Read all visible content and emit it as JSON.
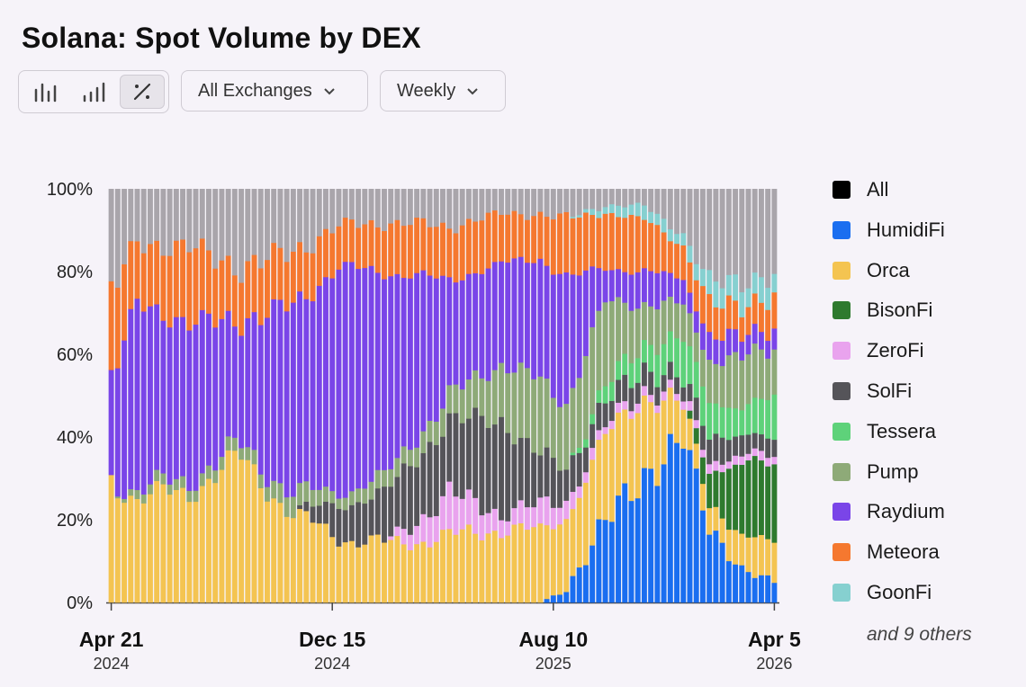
{
  "title": "Solana: Spot Volume by DEX",
  "toolbar": {
    "view_buttons": [
      {
        "name": "bar-chart-icon",
        "active": false
      },
      {
        "name": "ascending-bars-icon",
        "active": false
      },
      {
        "name": "percent-icon",
        "active": true
      }
    ],
    "exchange_select": "All Exchanges",
    "interval_select": "Weekly"
  },
  "legend": {
    "items": [
      {
        "label": "All",
        "color": "#000000"
      },
      {
        "label": "HumidiFi",
        "color": "#1a6ef0"
      },
      {
        "label": "Orca",
        "color": "#f4c451"
      },
      {
        "label": "BisonFi",
        "color": "#2e7a2e"
      },
      {
        "label": "ZeroFi",
        "color": "#e9a3ee"
      },
      {
        "label": "SolFi",
        "color": "#555459"
      },
      {
        "label": "Tessera",
        "color": "#5ed27a"
      },
      {
        "label": "Pump",
        "color": "#8eaa78"
      },
      {
        "label": "Raydium",
        "color": "#7a45e8"
      },
      {
        "label": "Meteora",
        "color": "#f5782f"
      },
      {
        "label": "GoonFi",
        "color": "#86d0d0"
      }
    ],
    "others_text": "and 9 others"
  },
  "chart_data": {
    "type": "bar",
    "stacked": true,
    "normalized": true,
    "x_range": [
      "2024-04-21",
      "2026-04-05"
    ],
    "interval": "weekly",
    "bar_count": 103,
    "y_ticks": [
      "100%",
      "80%",
      "60%",
      "40%",
      "20%",
      "0%"
    ],
    "ylim": [
      0,
      100
    ],
    "x_ticks": [
      {
        "date": "2024-04-21",
        "label": "Apr 21",
        "year": "2024"
      },
      {
        "date": "2024-12-15",
        "label": "Dec 15",
        "year": "2024"
      },
      {
        "date": "2025-08-10",
        "label": "Aug 10",
        "year": "2025"
      },
      {
        "date": "2026-04-05",
        "label": "Apr 5",
        "year": "2026"
      }
    ],
    "series_order": [
      "HumidiFi",
      "Orca",
      "BisonFi",
      "ZeroFi",
      "SolFi",
      "Tessera",
      "Pump",
      "Raydium",
      "Meteora",
      "GoonFi",
      "Other"
    ],
    "series_colors": {
      "HumidiFi": "#1a6ef0",
      "Orca": "#f4c451",
      "BisonFi": "#2e7a2e",
      "ZeroFi": "#e9a3ee",
      "SolFi": "#555459",
      "Tessera": "#5ed27a",
      "Pump": "#8eaa78",
      "Raydium": "#7a45e8",
      "Meteora": "#f5782f",
      "GoonFi": "#86d0d0",
      "Other": "#a9a5ab"
    },
    "keyframes": [
      {
        "week": 0,
        "HumidiFi": 0,
        "Orca": 30,
        "BisonFi": 0,
        "ZeroFi": 0,
        "SolFi": 0,
        "Tessera": 0,
        "Pump": 0,
        "Raydium": 25,
        "Meteora": 20,
        "GoonFi": 0,
        "Other": 25
      },
      {
        "week": 4,
        "HumidiFi": 0,
        "Orca": 25,
        "BisonFi": 0,
        "ZeroFi": 0,
        "SolFi": 0,
        "Tessera": 0,
        "Pump": 2,
        "Raydium": 45,
        "Meteora": 15,
        "GoonFi": 0,
        "Other": 13
      },
      {
        "week": 12,
        "HumidiFi": 0,
        "Orca": 27,
        "BisonFi": 0,
        "ZeroFi": 0,
        "SolFi": 0,
        "Tessera": 0,
        "Pump": 3,
        "Raydium": 38,
        "Meteora": 18,
        "GoonFi": 0,
        "Other": 14
      },
      {
        "week": 20,
        "HumidiFi": 0,
        "Orca": 35,
        "BisonFi": 0,
        "ZeroFi": 0,
        "SolFi": 0,
        "Tessera": 0,
        "Pump": 3,
        "Raydium": 30,
        "Meteora": 13,
        "GoonFi": 0,
        "Other": 19
      },
      {
        "week": 28,
        "HumidiFi": 0,
        "Orca": 21,
        "BisonFi": 0,
        "ZeroFi": 0,
        "SolFi": 0,
        "Tessera": 0,
        "Pump": 5,
        "Raydium": 46,
        "Meteora": 13,
        "GoonFi": 0,
        "Other": 15
      },
      {
        "week": 35,
        "HumidiFi": 0,
        "Orca": 16,
        "BisonFi": 0,
        "ZeroFi": 0,
        "SolFi": 8,
        "Tessera": 0,
        "Pump": 3,
        "Raydium": 54,
        "Meteora": 10,
        "GoonFi": 0,
        "Other": 9
      },
      {
        "week": 42,
        "HumidiFi": 0,
        "Orca": 14,
        "BisonFi": 0,
        "ZeroFi": 0,
        "SolFi": 12,
        "Tessera": 0,
        "Pump": 4,
        "Raydium": 50,
        "Meteora": 12,
        "GoonFi": 0,
        "Other": 8
      },
      {
        "week": 52,
        "HumidiFi": 0,
        "Orca": 16,
        "BisonFi": 0,
        "ZeroFi": 10,
        "SolFi": 18,
        "Tessera": 0,
        "Pump": 6,
        "Raydium": 28,
        "Meteora": 13,
        "GoonFi": 0,
        "Other": 9
      },
      {
        "week": 60,
        "HumidiFi": 0,
        "Orca": 18,
        "BisonFi": 0,
        "ZeroFi": 4,
        "SolFi": 22,
        "Tessera": 0,
        "Pump": 14,
        "Raydium": 24,
        "Meteora": 12,
        "GoonFi": 0,
        "Other": 6
      },
      {
        "week": 66,
        "HumidiFi": 0,
        "Orca": 17,
        "BisonFi": 0,
        "ZeroFi": 6,
        "SolFi": 12,
        "Tessera": 0,
        "Pump": 18,
        "Raydium": 30,
        "Meteora": 11,
        "GoonFi": 0,
        "Other": 6
      },
      {
        "week": 70,
        "HumidiFi": 3,
        "Orca": 18,
        "BisonFi": 0,
        "ZeroFi": 4,
        "SolFi": 8,
        "Tessera": 0,
        "Pump": 16,
        "Raydium": 30,
        "Meteora": 14,
        "GoonFi": 0,
        "Other": 7
      },
      {
        "week": 76,
        "HumidiFi": 20,
        "Orca": 20,
        "BisonFi": 0,
        "ZeroFi": 2,
        "SolFi": 6,
        "Tessera": 4,
        "Pump": 20,
        "Raydium": 8,
        "Meteora": 14,
        "GoonFi": 2,
        "Other": 4
      },
      {
        "week": 82,
        "HumidiFi": 30,
        "Orca": 20,
        "BisonFi": 0,
        "ZeroFi": 2,
        "SolFi": 5,
        "Tessera": 6,
        "Pump": 10,
        "Raydium": 8,
        "Meteora": 12,
        "GoonFi": 3,
        "Other": 4
      },
      {
        "week": 88,
        "HumidiFi": 40,
        "Orca": 8,
        "BisonFi": 0,
        "ZeroFi": 2,
        "SolFi": 4,
        "Tessera": 10,
        "Pump": 8,
        "Raydium": 6,
        "Meteora": 8,
        "GoonFi": 3,
        "Other": 11
      },
      {
        "week": 92,
        "HumidiFi": 18,
        "Orca": 6,
        "BisonFi": 8,
        "ZeroFi": 2,
        "SolFi": 6,
        "Tessera": 8,
        "Pump": 10,
        "Raydium": 6,
        "Meteora": 8,
        "GoonFi": 5,
        "Other": 23
      },
      {
        "week": 97,
        "HumidiFi": 8,
        "Orca": 8,
        "BisonFi": 18,
        "ZeroFi": 2,
        "SolFi": 5,
        "Tessera": 7,
        "Pump": 12,
        "Raydium": 5,
        "Meteora": 7,
        "GoonFi": 6,
        "Other": 22
      },
      {
        "week": 102,
        "HumidiFi": 5,
        "Orca": 10,
        "BisonFi": 18,
        "ZeroFi": 2,
        "SolFi": 4,
        "Tessera": 10,
        "Pump": 12,
        "Raydium": 5,
        "Meteora": 8,
        "GoonFi": 5,
        "Other": 21
      }
    ]
  }
}
